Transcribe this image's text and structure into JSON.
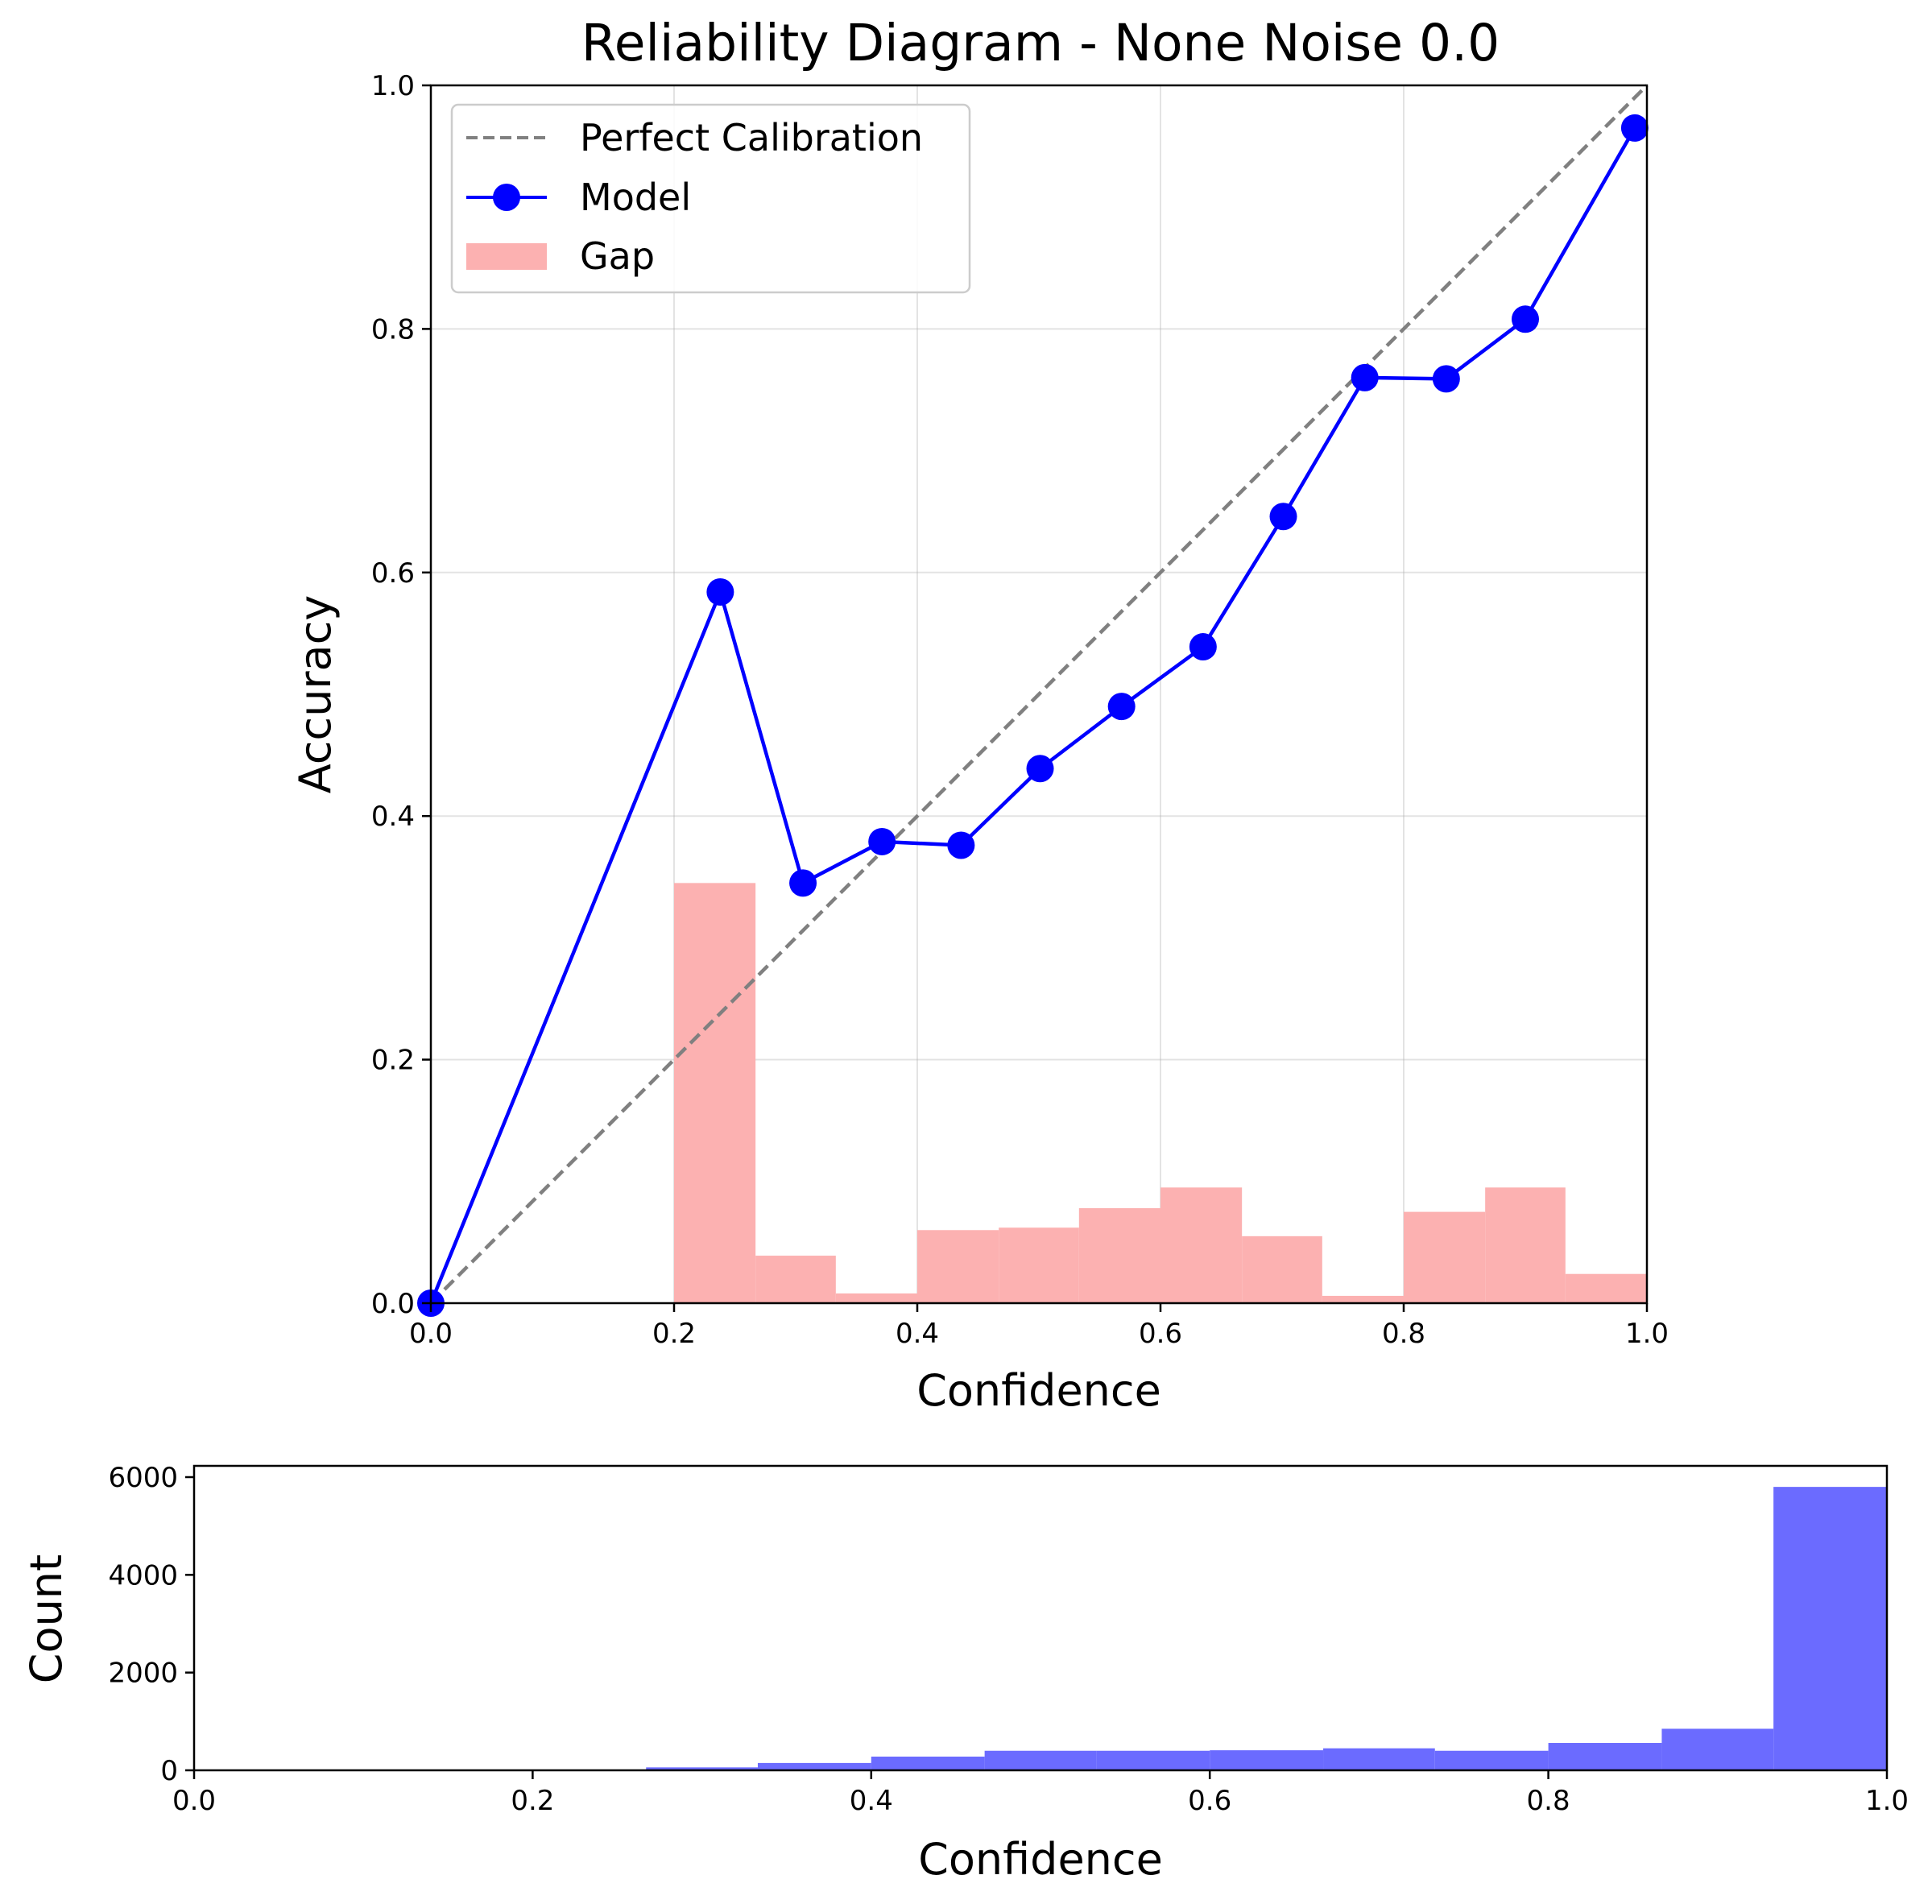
{
  "chart_data": [
    {
      "type": "line",
      "title": "Reliability Diagram - None Noise 0.0",
      "xlabel": "Confidence",
      "ylabel": "Accuracy",
      "xlim": [
        0,
        1
      ],
      "ylim": [
        0,
        1
      ],
      "xticks": [
        "0.0",
        "0.2",
        "0.4",
        "0.6",
        "0.8",
        "1.0"
      ],
      "yticks": [
        "0.0",
        "0.2",
        "0.4",
        "0.6",
        "0.8",
        "1.0"
      ],
      "grid": true,
      "legend_position": "top-left",
      "legend": [
        "Perfect Calibration",
        "Model",
        "Gap"
      ],
      "series": [
        {
          "name": "Perfect Calibration",
          "style": "dashed",
          "color": "#808080",
          "x": [
            0,
            1
          ],
          "y": [
            0,
            1
          ]
        },
        {
          "name": "Model",
          "style": "line-marker",
          "color": "#0000ff",
          "x": [
            0.0,
            0.238,
            0.306,
            0.371,
            0.436,
            0.501,
            0.568,
            0.635,
            0.701,
            0.768,
            0.835,
            0.9,
            0.99
          ],
          "y": [
            0.0,
            0.584,
            0.345,
            0.379,
            0.376,
            0.439,
            0.49,
            0.539,
            0.646,
            0.76,
            0.759,
            0.808,
            0.965
          ]
        },
        {
          "name": "Gap",
          "style": "bar",
          "color": "#fcb1b1",
          "bin_start": [
            0.2,
            0.267,
            0.333,
            0.4,
            0.467,
            0.533,
            0.6,
            0.667,
            0.733,
            0.8,
            0.867,
            0.933
          ],
          "bin_end": [
            0.267,
            0.333,
            0.4,
            0.467,
            0.533,
            0.6,
            0.667,
            0.733,
            0.8,
            0.867,
            0.933,
            1.0
          ],
          "values": [
            0.345,
            0.039,
            0.008,
            0.06,
            0.062,
            0.078,
            0.095,
            0.055,
            0.006,
            0.075,
            0.095,
            0.024
          ]
        }
      ]
    },
    {
      "type": "bar",
      "title": "",
      "xlabel": "Confidence",
      "ylabel": "Count",
      "xlim": [
        0,
        1
      ],
      "ylim": [
        0,
        6000
      ],
      "xticks": [
        "0.0",
        "0.2",
        "0.4",
        "0.6",
        "0.8",
        "1.0"
      ],
      "yticks": [
        "0",
        "2000",
        "4000",
        "6000"
      ],
      "grid": false,
      "series": [
        {
          "name": "",
          "color": "#6b6bff",
          "bin_start": [
            0.267,
            0.333,
            0.4,
            0.467,
            0.533,
            0.6,
            0.667,
            0.733,
            0.8,
            0.867,
            0.933
          ],
          "bin_end": [
            0.333,
            0.4,
            0.467,
            0.533,
            0.6,
            0.667,
            0.733,
            0.8,
            0.867,
            0.933,
            1.0
          ],
          "values": [
            60,
            150,
            280,
            400,
            400,
            410,
            450,
            400,
            560,
            850,
            5800
          ]
        }
      ]
    }
  ]
}
